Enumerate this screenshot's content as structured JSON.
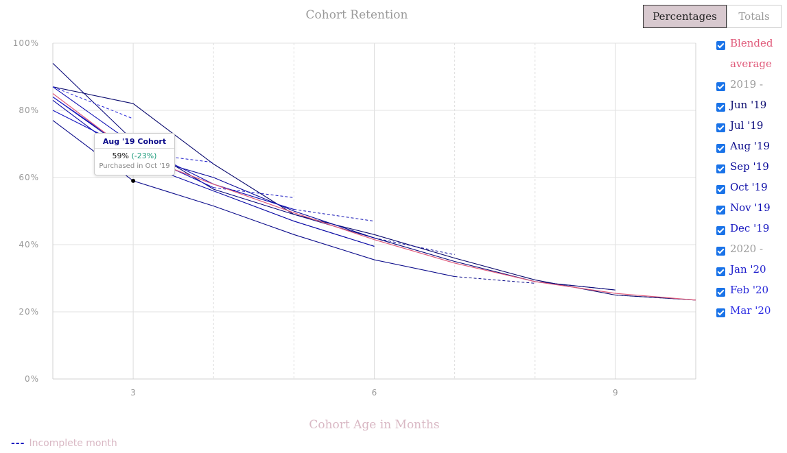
{
  "title": "Cohort Retention",
  "toggle": {
    "percentages_label": "Percentages",
    "totals_label": "Totals",
    "selected": "Percentages"
  },
  "footnote": {
    "dash": "---",
    "text": "Incomplete month"
  },
  "tooltip": {
    "header": "Aug '19 Cohort",
    "value": "59%",
    "change": "(-23%)",
    "note": "Purchased in Oct '19"
  },
  "legend": [
    {
      "label": "Blended average",
      "color": "#e05a7a",
      "checked": true
    },
    {
      "label": "2019  -",
      "color": "#999999",
      "checked": true
    },
    {
      "label": "Jun '19",
      "color": "#0a0a6e",
      "checked": true
    },
    {
      "label": "Jul '19",
      "color": "#0a0a7a",
      "checked": true
    },
    {
      "label": "Aug '19",
      "color": "#0a0a8a",
      "checked": true
    },
    {
      "label": "Sep '19",
      "color": "#0a0a9a",
      "checked": true
    },
    {
      "label": "Oct '19",
      "color": "#0a0aa6",
      "checked": true
    },
    {
      "label": "Nov '19",
      "color": "#1010b4",
      "checked": true
    },
    {
      "label": "Dec '19",
      "color": "#1414c0",
      "checked": true
    },
    {
      "label": "2020  -",
      "color": "#999999",
      "checked": true
    },
    {
      "label": "Jan '20",
      "color": "#1c1ccc",
      "checked": true
    },
    {
      "label": "Feb '20",
      "color": "#2424d8",
      "checked": true
    },
    {
      "label": "Mar '20",
      "color": "#2c2ce4",
      "checked": true
    }
  ],
  "chart_data": {
    "type": "line",
    "title": "Cohort Retention",
    "xlabel": "Cohort Age in Months",
    "ylabel": "",
    "xlim": [
      2,
      10
    ],
    "ylim": [
      0,
      100
    ],
    "xticks": [
      3,
      6,
      9
    ],
    "yticks": [
      0,
      20,
      40,
      60,
      80,
      100
    ],
    "ytick_labels": [
      "0%",
      "20%",
      "40%",
      "60%",
      "80%",
      "100%"
    ],
    "grid": true,
    "legend_position": "right",
    "series": [
      {
        "name": "Jun '19",
        "color": "#0a0a6e",
        "x": [
          2,
          3,
          4,
          5,
          6,
          7,
          8,
          9,
          10
        ],
        "y": [
          87,
          82,
          64,
          49,
          43,
          36,
          29.5,
          25,
          23.5
        ],
        "incomplete_x": [
          9,
          10
        ],
        "incomplete_y": [
          25,
          23.5
        ]
      },
      {
        "name": "Jul '19",
        "color": "#0a0a7a",
        "x": [
          2,
          3,
          4,
          5,
          6,
          7,
          8,
          9
        ],
        "y": [
          94,
          71,
          56.5,
          49,
          42,
          35,
          29,
          26.5
        ],
        "incomplete_x": [
          8,
          9
        ],
        "incomplete_y": [
          29,
          26.5
        ]
      },
      {
        "name": "Aug '19",
        "color": "#0a0a8a",
        "x": [
          2,
          3,
          4,
          5,
          6,
          7
        ],
        "y": [
          77,
          59,
          51.5,
          43,
          35.5,
          30.5
        ],
        "incomplete_x": [
          7,
          8
        ],
        "incomplete_y": [
          30.5,
          28.5
        ]
      },
      {
        "name": "Sep '19",
        "color": "#0a0a9a",
        "x": [
          2,
          3,
          4,
          5,
          6
        ],
        "y": [
          84,
          67,
          60,
          50,
          42
        ],
        "incomplete_x": [
          6,
          7
        ],
        "incomplete_y": [
          42,
          37
        ]
      },
      {
        "name": "Oct '19",
        "color": "#0a0aa6",
        "x": [
          2,
          3,
          4,
          5,
          6
        ],
        "y": [
          83,
          65,
          56,
          47,
          39.5
        ],
        "incomplete_x": [
          5,
          6
        ],
        "incomplete_y": [
          47,
          39.5
        ]
      },
      {
        "name": "Nov '19",
        "color": "#1010b4",
        "x": [
          2,
          3,
          4,
          5
        ],
        "y": [
          87,
          70,
          58,
          50.5
        ],
        "incomplete_x": [
          5,
          6
        ],
        "incomplete_y": [
          50.5,
          47
        ]
      },
      {
        "name": "Dec '19",
        "color": "#1414c0",
        "x": [
          2,
          3,
          4
        ],
        "y": [
          80,
          68,
          57
        ],
        "incomplete_x": [
          4,
          5
        ],
        "incomplete_y": [
          57,
          54
        ]
      },
      {
        "name": "Jan '20",
        "color": "#1c1ccc",
        "x": [
          2,
          3
        ],
        "y": [
          84,
          67.5
        ],
        "incomplete_x": [
          3,
          4
        ],
        "incomplete_y": [
          67.5,
          64.5
        ]
      },
      {
        "name": "Feb '20",
        "color": "#2424d8",
        "x": [
          2
        ],
        "y": [
          87
        ],
        "incomplete_x": [
          2,
          3
        ],
        "incomplete_y": [
          87,
          77.5
        ]
      },
      {
        "name": "Blended average",
        "color": "#e05a7a",
        "x": [
          2,
          3,
          4,
          5,
          6,
          7,
          8,
          9,
          10
        ],
        "y": [
          85,
          67,
          58,
          49.5,
          41.5,
          34.5,
          29,
          25.5,
          23.5
        ],
        "incomplete_x": [],
        "incomplete_y": []
      }
    ],
    "highlight_point": {
      "series": "Aug '19",
      "x": 3,
      "y": 59
    }
  }
}
